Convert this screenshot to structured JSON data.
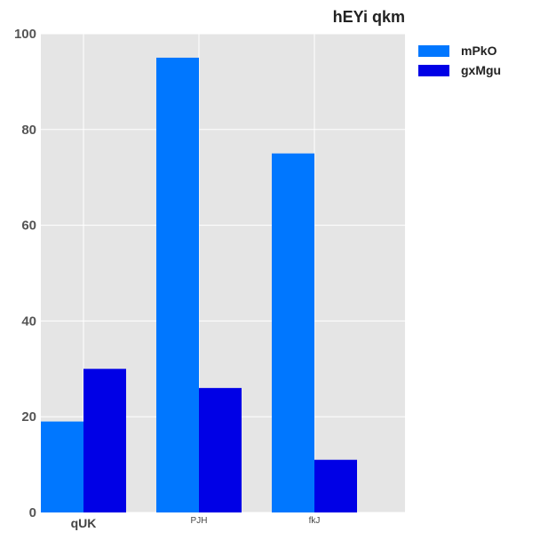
{
  "chart_data": {
    "type": "bar",
    "title": "hEYi qkm",
    "xlabel": "",
    "ylabel": "",
    "categories": [
      "qUK",
      "PJH",
      "fkJ"
    ],
    "series": [
      {
        "name": "mPkO",
        "values": [
          19,
          95,
          75
        ],
        "color": "#0077ff"
      },
      {
        "name": "gxMgu",
        "values": [
          30,
          26,
          11
        ],
        "color": "#0000e6"
      }
    ],
    "ylim": [
      0,
      100
    ],
    "yticks": [
      0,
      20,
      40,
      60,
      80,
      100
    ],
    "grid": true,
    "legend_position": "right",
    "background": "#e5e5e5"
  }
}
